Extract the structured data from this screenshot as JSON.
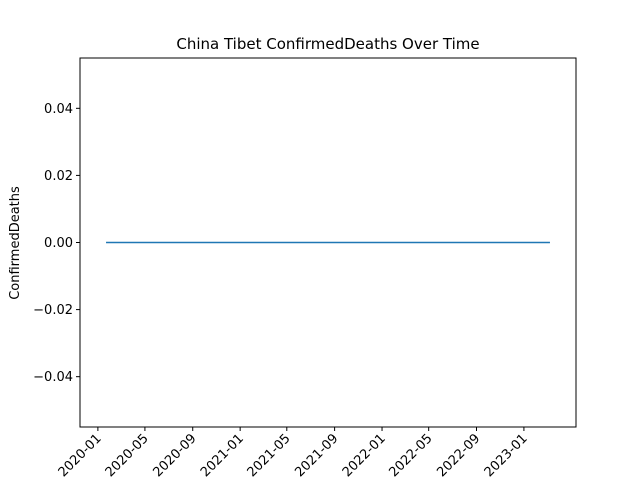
{
  "chart_data": {
    "type": "line",
    "title": "China Tibet ConfirmedDeaths Over Time",
    "xlabel": "",
    "ylabel": "ConfirmedDeaths",
    "x": [
      "2020-01-22",
      "2023-03-09"
    ],
    "series": [
      {
        "values": [
          0,
          0
        ],
        "color": "#1f77b4"
      }
    ],
    "xlim": [
      "2019-11-16",
      "2023-05-15"
    ],
    "ylim": [
      -0.055,
      0.055
    ],
    "yticks": [
      -0.04,
      -0.02,
      0.0,
      0.02,
      0.04
    ],
    "ytick_labels": [
      "−0.04",
      "−0.02",
      "0.00",
      "0.02",
      "0.04"
    ],
    "xticks": [
      "2020-01-01",
      "2020-05-01",
      "2020-09-01",
      "2021-01-01",
      "2021-05-01",
      "2021-09-01",
      "2022-01-01",
      "2022-05-01",
      "2022-09-01",
      "2023-01-01"
    ],
    "xtick_labels": [
      "2020-01",
      "2020-05",
      "2020-09",
      "2021-01",
      "2021-05",
      "2021-09",
      "2022-01",
      "2022-05",
      "2022-09",
      "2023-01"
    ],
    "grid": false,
    "legend": "none",
    "colors": {
      "line": "#1f77b4",
      "axes": "#000000",
      "background": "#ffffff"
    }
  }
}
